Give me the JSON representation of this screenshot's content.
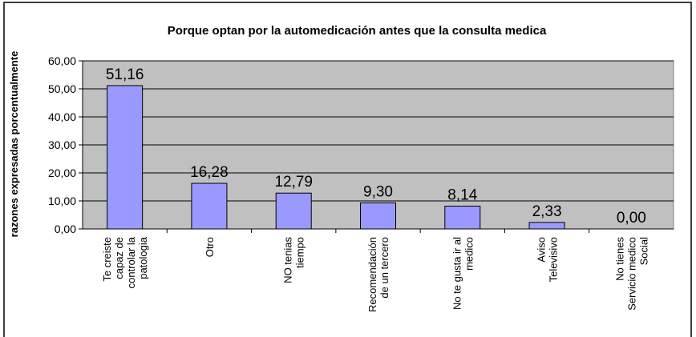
{
  "chart_data": {
    "type": "bar",
    "title": "Porque optan por la automedicación antes que la consulta medica",
    "y_label": "razones expresadas porcentualmente",
    "categories": [
      "Te creiste\ncapaz de\ncontrolar la\npatologia",
      "Otro",
      "NO tenias\ntiempo",
      "Recomendación\nde un tercero",
      "No te gusta ir al\nmedico",
      "Aviso\nTelevisivo",
      "No tienes\nServicio medico\nSocial"
    ],
    "values": [
      51.16,
      16.28,
      12.79,
      9.3,
      8.14,
      2.33,
      0.0
    ],
    "value_labels": [
      "51,16",
      "16,28",
      "12,79",
      "9,30",
      "8,14",
      "2,33",
      "0,00"
    ],
    "color": "#9999ff",
    "plot_background": "#c0c0c0",
    "ylim": [
      0,
      60
    ],
    "yticks": [
      {
        "value": 0,
        "label": "0,00"
      },
      {
        "value": 10,
        "label": "10,00"
      },
      {
        "value": 20,
        "label": "20,00"
      },
      {
        "value": 30,
        "label": "30,00"
      },
      {
        "value": 40,
        "label": "40,00"
      },
      {
        "value": 50,
        "label": "50,00"
      },
      {
        "value": 60,
        "label": "60,00"
      }
    ],
    "grid": true
  }
}
